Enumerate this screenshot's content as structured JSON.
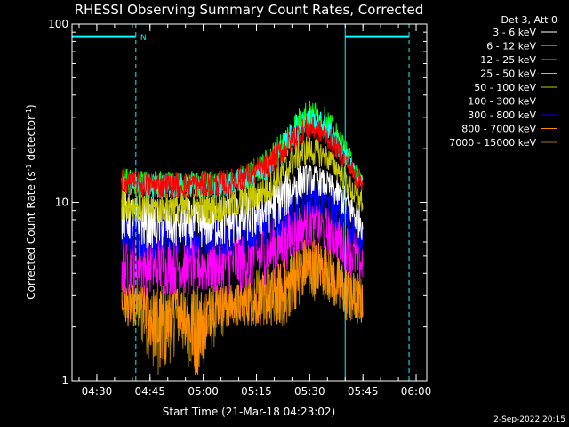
{
  "chart_data": {
    "type": "line",
    "title": "RHESSI Observing Summary Count Rates, Corrected",
    "xlabel": "Start Time (21-Mar-18 04:23:02)",
    "ylabel": "Corrected Count Rate (s",
    "ylabel_sup": "-1",
    "ylabel_mid": " detector",
    "ylabel_sup2": "-1",
    "ylabel_end": ")",
    "y_scale": "log",
    "ylim": [
      1,
      100
    ],
    "xlim_minutes": [
      0,
      100
    ],
    "x_ticks": [
      {
        "label": "04:30",
        "minute": 7
      },
      {
        "label": "04:45",
        "minute": 22
      },
      {
        "label": "05:00",
        "minute": 37
      },
      {
        "label": "05:15",
        "minute": 52
      },
      {
        "label": "05:30",
        "minute": 67
      },
      {
        "label": "05:45",
        "minute": 82
      },
      {
        "label": "06:00",
        "minute": 97
      }
    ],
    "y_ticks": [
      {
        "label": "1",
        "value": 1
      },
      {
        "label": "10",
        "value": 10
      },
      {
        "label": "100",
        "value": 100
      }
    ],
    "legend_header": "Det 3, Att 0",
    "legend_placement": "right",
    "series": [
      {
        "name": "3 - 6 keV",
        "color": "#ffffff"
      },
      {
        "name": "6 - 12 keV",
        "color": "#ff00ff"
      },
      {
        "name": "12 - 25 keV",
        "color": "#00ff00"
      },
      {
        "name": "25 - 50 keV",
        "color": "#00ffff"
      },
      {
        "name": "50 - 100 keV",
        "color": "#c8c800"
      },
      {
        "name": "100 - 300 keV",
        "color": "#ff0000"
      },
      {
        "name": "300 - 800 keV",
        "color": "#0000ff"
      },
      {
        "name": "800 - 7000 keV",
        "color": "#ff8c00"
      },
      {
        "name": "7000 - 15000 keV",
        "color": "#a07800"
      }
    ],
    "envelope_times_minutes": [
      14,
      17,
      20,
      25,
      30,
      35,
      40,
      45,
      50,
      55,
      60,
      63,
      66,
      69,
      72,
      75,
      78,
      80,
      82
    ],
    "envelopes": [
      {
        "series": "3 - 6 keV",
        "low": [
          6,
          6,
          5.5,
          5.5,
          5.5,
          5.5,
          5.5,
          5.5,
          6,
          6.5,
          8,
          9.5,
          11,
          11,
          10.5,
          9,
          7.5,
          6.5,
          6
        ],
        "high": [
          12,
          11,
          10.5,
          10.5,
          10.5,
          10.5,
          10.5,
          11,
          11.5,
          13,
          15,
          16.5,
          16.5,
          16,
          15,
          13.5,
          12,
          11,
          11
        ]
      },
      {
        "series": "6 - 12 keV",
        "low": [
          3,
          3,
          3,
          3,
          3,
          3,
          3,
          3,
          3.2,
          3.5,
          4,
          4.8,
          5.5,
          5.5,
          5,
          4.5,
          4,
          3.5,
          3
        ],
        "high": [
          7,
          6.5,
          6.5,
          6.5,
          6.5,
          6.5,
          6.5,
          7,
          7.5,
          8,
          9.5,
          10,
          10.5,
          10,
          9.5,
          8.5,
          7.5,
          7,
          7
        ]
      },
      {
        "series": "12 - 25 keV",
        "low": [
          11,
          11,
          10.5,
          10.5,
          10.5,
          10.5,
          10.5,
          11,
          12,
          14,
          18,
          22,
          25,
          25,
          23,
          19,
          15,
          13,
          12
        ],
        "high": [
          16,
          15,
          15,
          15,
          15,
          15,
          15,
          15,
          17,
          20,
          27,
          33,
          38,
          37,
          34,
          27,
          21,
          17,
          15
        ]
      },
      {
        "series": "25 - 50 keV",
        "low": [
          11,
          11,
          10.5,
          10.5,
          10.5,
          10.5,
          10.5,
          11,
          12,
          13.5,
          17,
          21,
          24,
          24,
          22,
          18,
          14.5,
          12.5,
          11.5
        ],
        "high": [
          15,
          14.5,
          14.5,
          14.5,
          14.5,
          14.5,
          14.5,
          15,
          16,
          19,
          25,
          31,
          35,
          34,
          31,
          25,
          19,
          16,
          14.5
        ]
      },
      {
        "series": "50 - 100 keV",
        "low": [
          8,
          8,
          7.5,
          7.5,
          7.5,
          7.5,
          7.5,
          8,
          8.5,
          9.5,
          12,
          14.5,
          16,
          16,
          15,
          13,
          10.5,
          9,
          8.5
        ],
        "high": [
          12,
          11.5,
          11.5,
          11.5,
          11.5,
          11.5,
          11.5,
          12,
          13,
          15,
          19,
          22,
          24,
          23,
          21,
          18,
          15,
          13,
          12
        ]
      },
      {
        "series": "100 - 300 keV",
        "low": [
          11,
          11,
          10.5,
          10.5,
          10.5,
          10.5,
          10.5,
          11,
          12,
          13.5,
          17,
          20,
          22,
          22,
          20,
          17,
          14,
          12,
          11.5
        ],
        "high": [
          16,
          15,
          15,
          15,
          15,
          15,
          15,
          15.5,
          17,
          19,
          24,
          28,
          31,
          30,
          27,
          23,
          18.5,
          16,
          15
        ]
      },
      {
        "series": "300 - 800 keV",
        "low": [
          5,
          5,
          4.8,
          4.8,
          4.8,
          4.8,
          4.8,
          5,
          5.2,
          5.6,
          6.5,
          7.5,
          8.5,
          8.5,
          8,
          7,
          6,
          5.5,
          5
        ],
        "high": [
          9,
          8.5,
          8.5,
          8.5,
          8.5,
          8.5,
          8.5,
          9,
          9.5,
          10.5,
          12,
          13.5,
          14.5,
          14,
          13,
          11.5,
          10,
          9,
          9
        ]
      },
      {
        "series": "800 - 7000 keV",
        "low": [
          2,
          2,
          2,
          1,
          2,
          1,
          2,
          2,
          2,
          2,
          2,
          2.5,
          3,
          3,
          3,
          2.5,
          2,
          2,
          2
        ],
        "high": [
          3.5,
          3.5,
          3.5,
          3.5,
          3.5,
          3.5,
          3.5,
          3.5,
          3.8,
          4,
          5,
          6,
          6.5,
          6.5,
          6,
          5,
          4.5,
          4,
          3.5
        ]
      },
      {
        "series": "7000 - 15000 keV",
        "low": [
          2,
          2,
          1.5,
          1,
          1.5,
          1,
          1.5,
          2,
          2,
          2,
          2,
          2.5,
          2.8,
          2.8,
          2.8,
          2.5,
          2,
          2,
          2
        ],
        "high": [
          4,
          3.5,
          3.5,
          3.5,
          3.5,
          3.5,
          3.5,
          3.5,
          4,
          4.5,
          5,
          5.5,
          6,
          6,
          5.5,
          5,
          4.5,
          4,
          4
        ]
      }
    ],
    "attenuator_bars": [
      {
        "start": 0,
        "end": 18,
        "value": 85,
        "color": "#00ffff",
        "label": "N"
      },
      {
        "start": 77,
        "end": 95,
        "value": 85,
        "color": "#00ffff",
        "label": ""
      }
    ],
    "solid_vlines": [
      {
        "minute": 0,
        "color": "#00ffff"
      },
      {
        "minute": 77,
        "color": "#00ffff"
      }
    ],
    "dashed_vlines": [
      {
        "minute": 18,
        "color": "#00ffff"
      },
      {
        "minute": 95,
        "color": "#00ffff"
      }
    ]
  },
  "timestamp": "2-Sep-2022 20:15"
}
